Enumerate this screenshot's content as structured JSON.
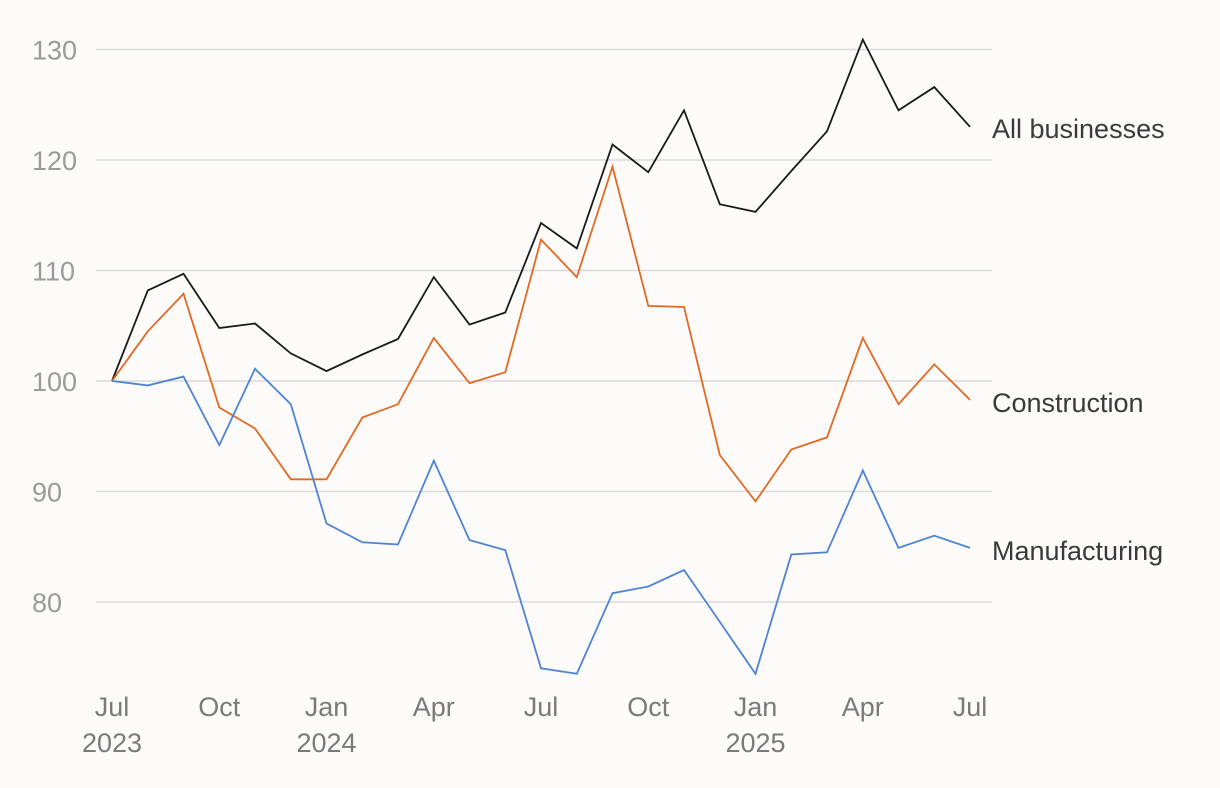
{
  "chart_data": {
    "type": "line",
    "title": "",
    "xlabel": "",
    "ylabel": "",
    "ylim": [
      73,
      131
    ],
    "yticks": [
      80,
      90,
      100,
      110,
      120,
      130
    ],
    "grid": true,
    "x": [
      "2023-07",
      "2023-08",
      "2023-09",
      "2023-10",
      "2023-11",
      "2023-12",
      "2024-01",
      "2024-02",
      "2024-03",
      "2024-04",
      "2024-05",
      "2024-06",
      "2024-07",
      "2024-08",
      "2024-09",
      "2024-10",
      "2024-11",
      "2024-12",
      "2025-01",
      "2025-02",
      "2025-03",
      "2025-04",
      "2025-05",
      "2025-06",
      "2025-07"
    ],
    "xticks": [
      {
        "x": "2023-07",
        "month": "Jul",
        "year": "2023"
      },
      {
        "x": "2023-10",
        "month": "Oct",
        "year": ""
      },
      {
        "x": "2024-01",
        "month": "Jan",
        "year": "2024"
      },
      {
        "x": "2024-04",
        "month": "Apr",
        "year": ""
      },
      {
        "x": "2024-07",
        "month": "Jul",
        "year": ""
      },
      {
        "x": "2024-10",
        "month": "Oct",
        "year": ""
      },
      {
        "x": "2025-01",
        "month": "Jan",
        "year": "2025"
      },
      {
        "x": "2025-04",
        "month": "Apr",
        "year": ""
      },
      {
        "x": "2025-07",
        "month": "Jul",
        "year": ""
      }
    ],
    "series": [
      {
        "name": "All businesses",
        "color": "#1a1a1a",
        "values": [
          100,
          108.2,
          109.7,
          104.8,
          105.2,
          102.5,
          100.9,
          102.4,
          103.8,
          109.4,
          105.1,
          106.2,
          114.3,
          112.0,
          121.4,
          118.9,
          124.5,
          116.0,
          115.3,
          119.0,
          122.6,
          130.9,
          124.5,
          126.6,
          123.0
        ]
      },
      {
        "name": "Construction",
        "color": "#e06a24",
        "values": [
          100,
          104.5,
          107.9,
          97.6,
          95.7,
          91.1,
          91.1,
          96.7,
          97.9,
          103.9,
          99.8,
          100.8,
          112.8,
          109.4,
          119.4,
          106.8,
          106.7,
          93.3,
          89.1,
          93.8,
          94.9,
          103.9,
          97.9,
          101.5,
          98.3
        ]
      },
      {
        "name": "Manufacturing",
        "color": "#4f84d4",
        "values": [
          100,
          99.6,
          100.4,
          94.2,
          101.1,
          97.9,
          87.1,
          85.4,
          85.2,
          92.8,
          85.6,
          84.7,
          74.0,
          73.5,
          80.8,
          81.4,
          82.9,
          78.2,
          73.5,
          84.3,
          84.5,
          91.9,
          84.9,
          86.0,
          84.9
        ]
      }
    ]
  }
}
